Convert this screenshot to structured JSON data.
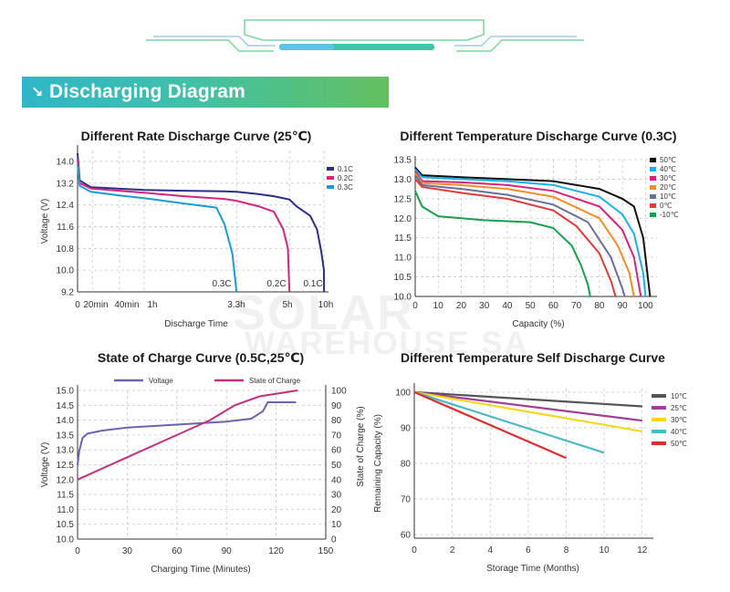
{
  "banner": {
    "title": "Discharging Diagram",
    "icon": "arrow-down-right-icon"
  },
  "watermark": {
    "line1": "SOLAR",
    "line2": "WAREHOUSE SA"
  },
  "colors": {
    "banner_start": "#2fb6c9",
    "banner_end": "#63c05f"
  },
  "chart_data": [
    {
      "id": "rate",
      "type": "line",
      "title": "Different Rate Discharge Curve (25℃)",
      "xlabel": "Discharge Time",
      "ylabel": "Voltage (V)",
      "x_tick_labels": [
        {
          "t": 0,
          "label": "0"
        },
        {
          "t": 0.333,
          "label": "20min"
        },
        {
          "t": 0.667,
          "label": "40min"
        },
        {
          "t": 1,
          "label": "1h"
        },
        {
          "t": 3.3,
          "label": "3.3h"
        },
        {
          "t": 5,
          "label": "5h"
        },
        {
          "t": 10,
          "label": "10h"
        }
      ],
      "y_ticks": [
        9.2,
        10.0,
        10.8,
        11.6,
        12.4,
        13.2,
        14.0
      ],
      "ylim": [
        9.2,
        14.4
      ],
      "legend_position": "top-right",
      "series": [
        {
          "name": "0.1C",
          "color": "#2b2e86",
          "end_label": "0.1C",
          "points": [
            [
              0,
              14.3
            ],
            [
              0.05,
              13.3
            ],
            [
              0.3,
              13.05
            ],
            [
              1,
              12.95
            ],
            [
              2,
              12.92
            ],
            [
              3,
              12.9
            ],
            [
              3.3,
              12.88
            ],
            [
              4,
              12.8
            ],
            [
              4.5,
              12.72
            ],
            [
              5,
              12.6
            ],
            [
              6,
              12.35
            ],
            [
              8,
              12.0
            ],
            [
              9,
              11.5
            ],
            [
              9.6,
              10.7
            ],
            [
              10,
              10.0
            ],
            [
              10.05,
              9.2
            ]
          ]
        },
        {
          "name": "0.2C",
          "color": "#d6247a",
          "end_label": "0.2C",
          "points": [
            [
              0,
              14.1
            ],
            [
              0.05,
              13.2
            ],
            [
              0.3,
              13.0
            ],
            [
              1,
              12.85
            ],
            [
              2,
              12.72
            ],
            [
              3,
              12.62
            ],
            [
              3.3,
              12.55
            ],
            [
              4,
              12.35
            ],
            [
              4.5,
              12.15
            ],
            [
              4.8,
              11.5
            ],
            [
              4.95,
              10.8
            ],
            [
              5,
              9.2
            ]
          ]
        },
        {
          "name": "0.3C",
          "color": "#1a9cd3",
          "end_label": "0.3C",
          "points": [
            [
              0,
              13.9
            ],
            [
              0.05,
              13.1
            ],
            [
              0.3,
              12.88
            ],
            [
              0.667,
              12.75
            ],
            [
              1,
              12.65
            ],
            [
              2,
              12.45
            ],
            [
              2.8,
              12.3
            ],
            [
              3.0,
              11.7
            ],
            [
              3.2,
              10.6
            ],
            [
              3.3,
              9.2
            ]
          ]
        }
      ]
    },
    {
      "id": "temp",
      "type": "line",
      "title": "Different Temperature Discharge Curve (0.3C)",
      "xlabel": "Capacity (%)",
      "ylabel": "",
      "x_ticks": [
        0,
        10,
        20,
        30,
        40,
        50,
        60,
        70,
        80,
        90,
        100
      ],
      "xlim": [
        0,
        105
      ],
      "y_ticks": [
        10.0,
        10.5,
        11.0,
        11.5,
        12.0,
        12.5,
        13.0,
        13.5
      ],
      "ylim": [
        10.0,
        13.5
      ],
      "legend_position": "top-right",
      "series": [
        {
          "name": "50℃",
          "color": "#111111",
          "points": [
            [
              0,
              13.3
            ],
            [
              3,
              13.1
            ],
            [
              20,
              13.05
            ],
            [
              40,
              13.0
            ],
            [
              60,
              12.95
            ],
            [
              80,
              12.75
            ],
            [
              90,
              12.5
            ],
            [
              95,
              12.3
            ],
            [
              99,
              11.5
            ],
            [
              101,
              10.5
            ],
            [
              102,
              10.0
            ]
          ]
        },
        {
          "name": "40℃",
          "color": "#1ab0e8",
          "points": [
            [
              0,
              13.25
            ],
            [
              3,
              13.05
            ],
            [
              20,
              13.0
            ],
            [
              40,
              12.95
            ],
            [
              60,
              12.85
            ],
            [
              80,
              12.55
            ],
            [
              90,
              12.1
            ],
            [
              95,
              11.6
            ],
            [
              99,
              10.6
            ],
            [
              100,
              10.0
            ]
          ]
        },
        {
          "name": "30℃",
          "color": "#d6247a",
          "points": [
            [
              0,
              13.2
            ],
            [
              3,
              12.95
            ],
            [
              20,
              12.92
            ],
            [
              40,
              12.85
            ],
            [
              60,
              12.7
            ],
            [
              80,
              12.3
            ],
            [
              90,
              11.7
            ],
            [
              95,
              11.0
            ],
            [
              98,
              10.0
            ]
          ]
        },
        {
          "name": "20℃",
          "color": "#f28c28",
          "points": [
            [
              0,
              13.15
            ],
            [
              3,
              12.9
            ],
            [
              20,
              12.85
            ],
            [
              40,
              12.75
            ],
            [
              60,
              12.55
            ],
            [
              80,
              12.0
            ],
            [
              88,
              11.3
            ],
            [
              93,
              10.6
            ],
            [
              95,
              10.0
            ]
          ]
        },
        {
          "name": "10℃",
          "color": "#6a6f99",
          "points": [
            [
              0,
              13.1
            ],
            [
              3,
              12.85
            ],
            [
              20,
              12.75
            ],
            [
              40,
              12.6
            ],
            [
              60,
              12.35
            ],
            [
              75,
              11.9
            ],
            [
              85,
              11.0
            ],
            [
              90,
              10.2
            ],
            [
              91,
              10.0
            ]
          ]
        },
        {
          "name": "0℃",
          "color": "#e03a3a",
          "points": [
            [
              0,
              13.0
            ],
            [
              3,
              12.8
            ],
            [
              20,
              12.65
            ],
            [
              40,
              12.5
            ],
            [
              60,
              12.2
            ],
            [
              70,
              11.8
            ],
            [
              80,
              11.1
            ],
            [
              85,
              10.4
            ],
            [
              87,
              10.0
            ]
          ]
        },
        {
          "name": "-10℃",
          "color": "#1a9e4e",
          "points": [
            [
              0,
              12.7
            ],
            [
              3,
              12.3
            ],
            [
              10,
              12.05
            ],
            [
              30,
              11.95
            ],
            [
              50,
              11.9
            ],
            [
              60,
              11.75
            ],
            [
              68,
              11.3
            ],
            [
              72,
              10.8
            ],
            [
              75,
              10.3
            ],
            [
              76,
              10.0
            ]
          ]
        }
      ]
    },
    {
      "id": "soc",
      "type": "line",
      "title": "State of Charge Curve (0.5C,25℃)",
      "xlabel": "Charging Time (Minutes)",
      "ylabel": "Voltage (V)",
      "y2label": "State of Charge (%)",
      "x_ticks": [
        0,
        30,
        60,
        90,
        120,
        150
      ],
      "xlim": [
        0,
        150
      ],
      "y_ticks": [
        10.0,
        10.5,
        11.0,
        11.5,
        12.0,
        12.5,
        13.0,
        13.5,
        14.0,
        14.5,
        15.0
      ],
      "ylim": [
        10.0,
        15.0
      ],
      "y2_ticks": [
        0,
        10,
        20,
        30,
        40,
        50,
        60,
        70,
        80,
        90,
        100
      ],
      "y2lim": [
        0,
        100
      ],
      "legend_position": "top",
      "series": [
        {
          "name": "Voltage",
          "axis": "left",
          "color": "#6a64b0",
          "points": [
            [
              0,
              12.5
            ],
            [
              1,
              12.95
            ],
            [
              3,
              13.4
            ],
            [
              6,
              13.55
            ],
            [
              15,
              13.65
            ],
            [
              30,
              13.75
            ],
            [
              60,
              13.85
            ],
            [
              90,
              13.95
            ],
            [
              105,
              14.05
            ],
            [
              112,
              14.3
            ],
            [
              115,
              14.6
            ],
            [
              132,
              14.6
            ]
          ]
        },
        {
          "name": "State of Charge",
          "axis": "right",
          "color": "#c0317c",
          "points": [
            [
              0,
              40
            ],
            [
              30,
              55
            ],
            [
              60,
              70
            ],
            [
              80,
              80
            ],
            [
              95,
              90
            ],
            [
              110,
              96
            ],
            [
              133,
              100
            ]
          ]
        }
      ]
    },
    {
      "id": "self",
      "type": "line",
      "title": "Different Temperature Self Discharge Curve",
      "xlabel": "Storage Time (Months)",
      "ylabel": "Remaining Capacity (%)",
      "x_ticks": [
        0,
        2,
        4,
        6,
        8,
        10,
        12
      ],
      "xlim": [
        0,
        12.3
      ],
      "y_ticks": [
        60,
        70,
        80,
        90,
        100
      ],
      "ylim": [
        59,
        101
      ],
      "legend_position": "top-right",
      "series": [
        {
          "name": "10℃",
          "color": "#555555",
          "points": [
            [
              0,
              100
            ],
            [
              12,
              96
            ]
          ]
        },
        {
          "name": "25℃",
          "color": "#a0409a",
          "points": [
            [
              0,
              100
            ],
            [
              12,
              92
            ]
          ]
        },
        {
          "name": "30℃",
          "color": "#f2d820",
          "points": [
            [
              0,
              100
            ],
            [
              12,
              89
            ]
          ]
        },
        {
          "name": "40℃",
          "color": "#4db8c4",
          "points": [
            [
              0,
              100
            ],
            [
              10,
              83
            ]
          ]
        },
        {
          "name": "50℃",
          "color": "#d83030",
          "points": [
            [
              0,
              100
            ],
            [
              8,
              81.5
            ]
          ]
        }
      ]
    }
  ]
}
